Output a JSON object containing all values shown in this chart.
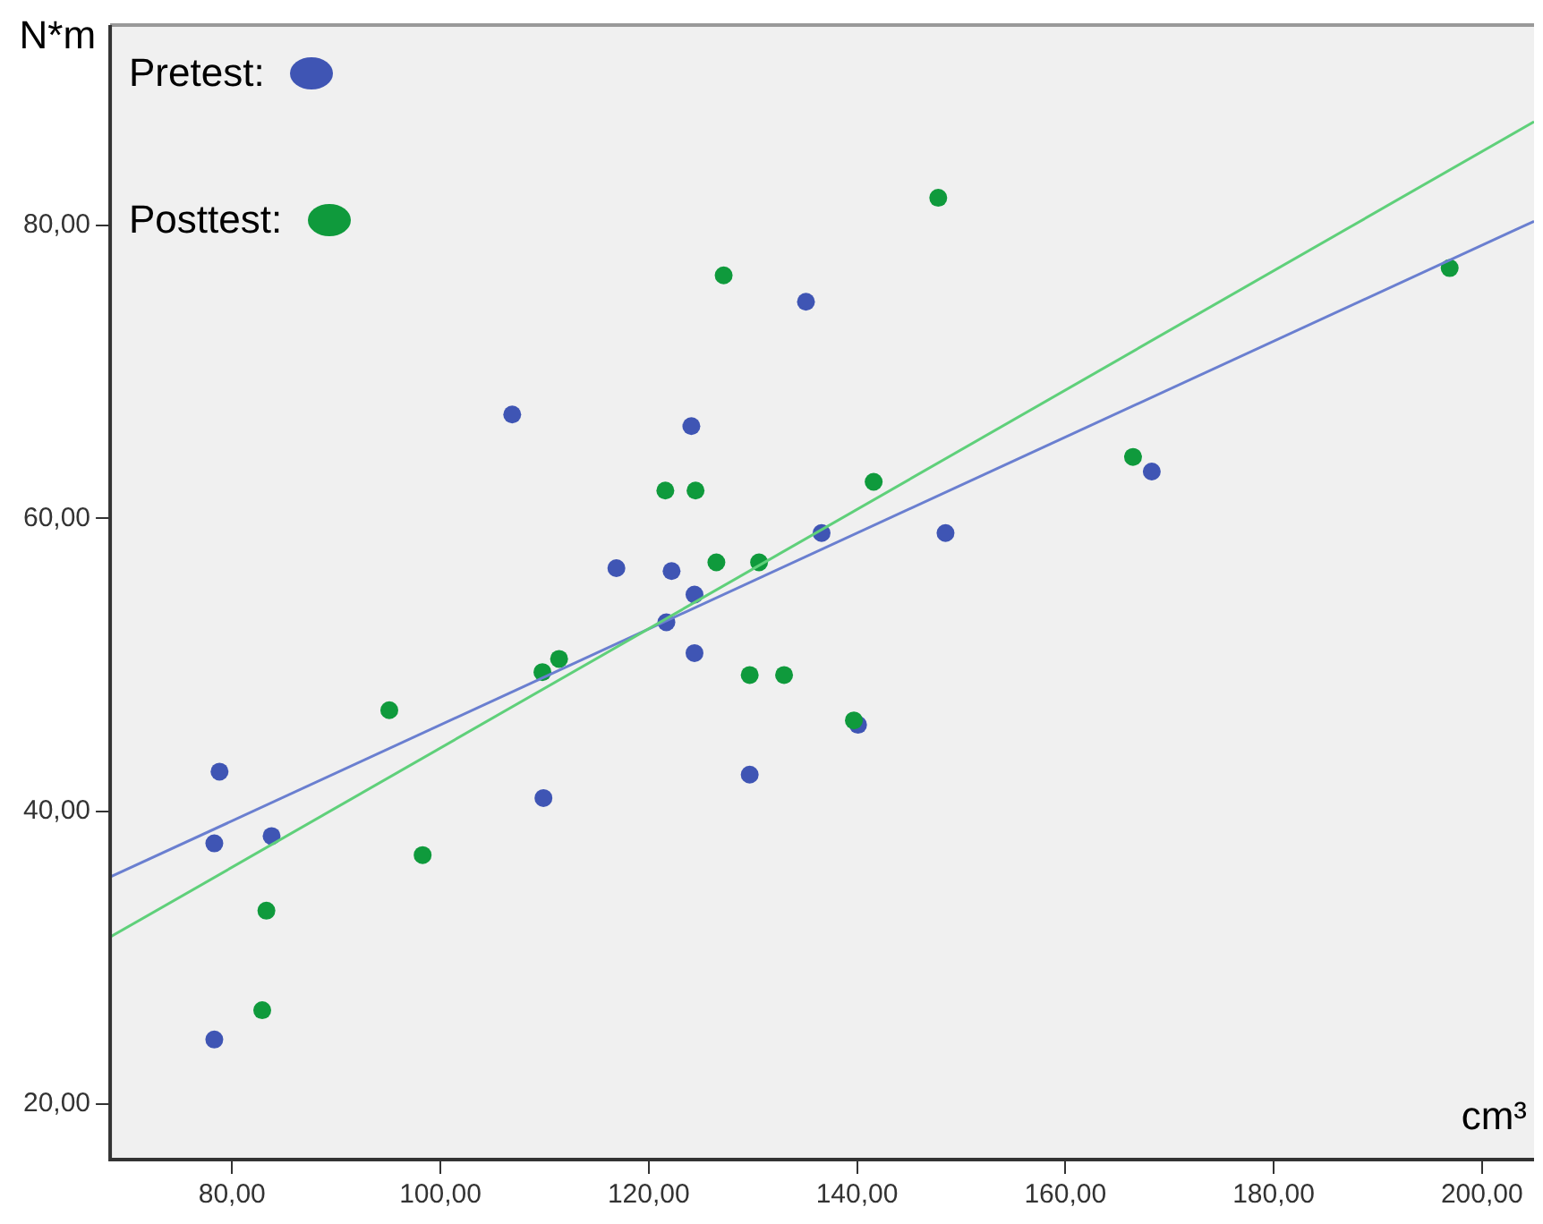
{
  "chart_data": {
    "type": "scatter",
    "xlabel": "cm³",
    "ylabel": "N*m",
    "xlim": [
      68.3,
      205
    ],
    "ylim": [
      16.2,
      93.7
    ],
    "xticks": [
      {
        "value": 80,
        "label": "80,00"
      },
      {
        "value": 100,
        "label": "100,00"
      },
      {
        "value": 120,
        "label": "120,00"
      },
      {
        "value": 140,
        "label": "140,00"
      },
      {
        "value": 160,
        "label": "160,00"
      },
      {
        "value": 180,
        "label": "180,00"
      },
      {
        "value": 200,
        "label": "200,00"
      }
    ],
    "yticks": [
      {
        "value": 20,
        "label": "20,00"
      },
      {
        "value": 40,
        "label": "40,00"
      },
      {
        "value": 60,
        "label": "60,00"
      },
      {
        "value": 80,
        "label": "80,00"
      }
    ],
    "grid": false,
    "legend": "top left",
    "marker": "circle",
    "series": [
      {
        "name": "Pretest:",
        "color": "#3f55b4",
        "x": [
          78.3,
          78.3,
          78.8,
          83.8,
          109.9,
          106.9,
          116.9,
          122.2,
          124.1,
          124.4,
          121.7,
          124.4,
          129.7,
          135.1,
          136.6,
          148.5,
          168.3,
          140.1
        ],
        "values": [
          24.4,
          37.8,
          42.7,
          38.3,
          40.9,
          67.1,
          56.6,
          56.4,
          66.3,
          54.8,
          52.9,
          50.8,
          42.5,
          74.8,
          59.0,
          59.0,
          63.2,
          45.9
        ]
      },
      {
        "name": "Posttest:",
        "color": "#0f9a3c",
        "x": [
          82.9,
          83.3,
          95.1,
          98.3,
          109.8,
          111.4,
          121.6,
          124.5,
          126.5,
          130.6,
          127.2,
          147.8,
          141.6,
          129.7,
          133.0,
          139.7,
          166.5,
          196.9
        ],
        "values": [
          26.4,
          33.2,
          46.9,
          37.0,
          49.5,
          50.4,
          61.9,
          61.9,
          57.0,
          57.0,
          76.6,
          81.9,
          62.5,
          49.3,
          49.3,
          46.2,
          64.2,
          77.1
        ]
      },
      {
        "type": "line",
        "color": "#6a7fd0",
        "marker": "none",
        "x": [
          68.3,
          205
        ],
        "values": [
          35.5,
          80.3
        ]
      },
      {
        "type": "line",
        "color": "#5fd07a",
        "marker": "none",
        "x": [
          68.3,
          205
        ],
        "values": [
          31.4,
          87.1
        ]
      }
    ]
  }
}
